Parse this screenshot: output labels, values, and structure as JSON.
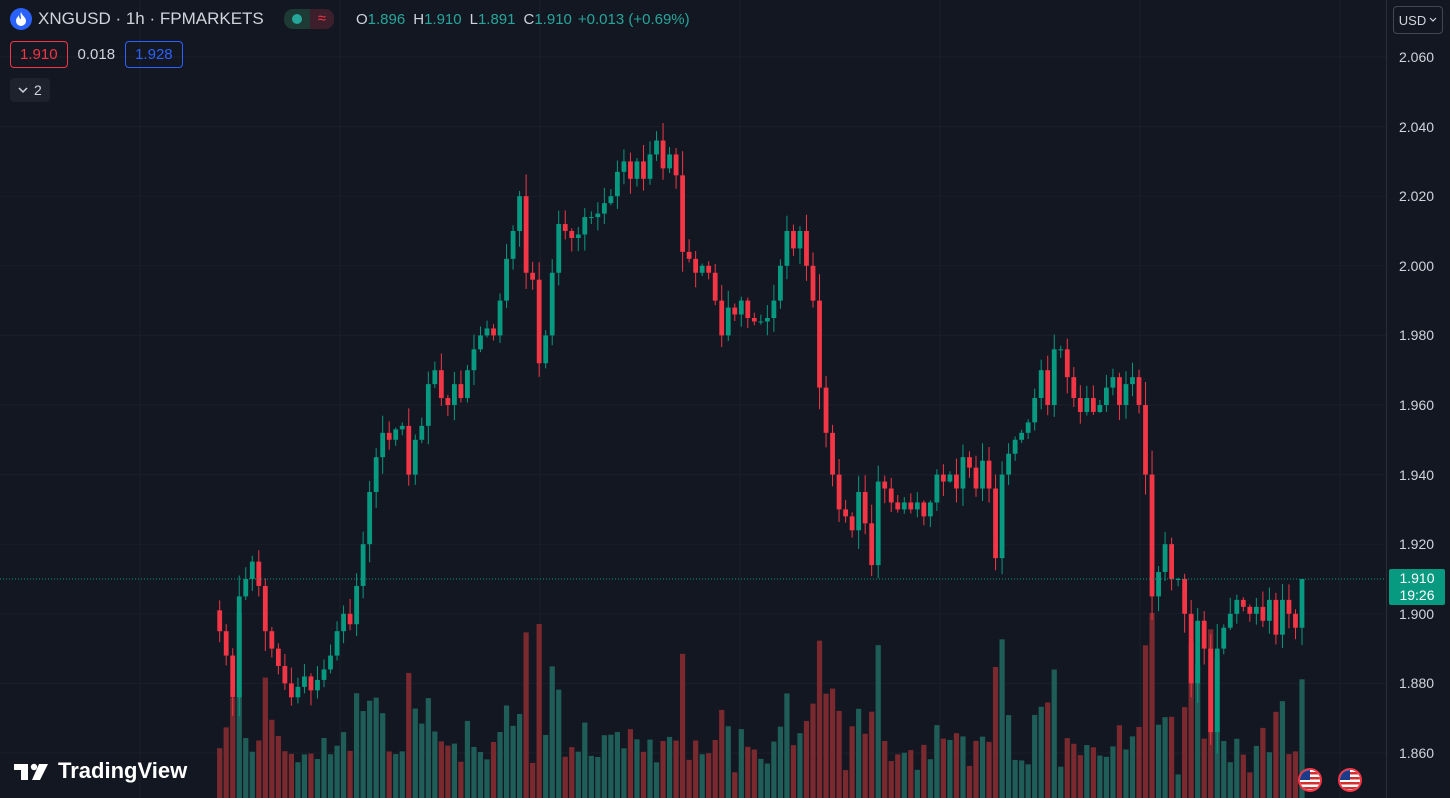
{
  "header": {
    "title": "XNGUSD · 1h · FPMARKETS",
    "ohlc": {
      "o_label": "O",
      "o": "1.896",
      "h_label": "H",
      "h": "1.910",
      "l_label": "L",
      "l": "1.891",
      "c_label": "C",
      "c": "1.910"
    },
    "change": "+0.013 (+0.69%)",
    "status_wave": "≈"
  },
  "quote": {
    "sell": "1.910",
    "spread": "0.018",
    "buy": "1.928"
  },
  "collapse": {
    "count": "2"
  },
  "scale": {
    "currency": "USD"
  },
  "last_price": {
    "price": "1.910",
    "countdown": "19:26"
  },
  "logo": {
    "text": "TradingView"
  },
  "colors": {
    "up": "#089981",
    "down": "#f23645",
    "up_vol": "#1f5e58",
    "down_vol": "#7a2a2e",
    "background": "#131722",
    "grid": "#1b1f2b"
  },
  "chart_data": {
    "type": "candlestick",
    "symbol": "XNGUSD",
    "interval": "1h",
    "ylim": [
      1.848,
      2.068
    ],
    "y_ticks": [
      "1.860",
      "1.880",
      "1.900",
      "1.920",
      "1.940",
      "1.960",
      "1.980",
      "2.000",
      "2.020",
      "2.040",
      "2.060"
    ],
    "last_price": 1.91,
    "candles": [
      [
        1.896,
        1.91,
        1.891,
        1.91
      ]
    ],
    "closes": [
      1.895,
      1.888,
      1.876,
      1.905,
      1.91,
      1.915,
      1.908,
      1.895,
      1.89,
      1.885,
      1.88,
      1.876,
      1.879,
      1.882,
      1.878,
      1.881,
      1.884,
      1.888,
      1.895,
      1.9,
      1.897,
      1.908,
      1.92,
      1.935,
      1.945,
      1.952,
      1.95,
      1.953,
      1.954,
      1.94,
      1.95,
      1.954,
      1.966,
      1.97,
      1.962,
      1.96,
      1.966,
      1.962,
      1.97,
      1.976,
      1.98,
      1.982,
      1.98,
      1.99,
      2.002,
      2.01,
      2.02,
      1.998,
      1.996,
      1.972,
      1.98,
      1.998,
      2.012,
      2.01,
      2.008,
      2.009,
      2.014,
      2.014,
      2.015,
      2.018,
      2.02,
      2.027,
      2.03,
      2.025,
      2.03,
      2.025,
      2.032,
      2.036,
      2.028,
      2.032,
      2.026,
      2.004,
      2.002,
      1.998,
      2.0,
      1.998,
      1.99,
      1.98,
      1.988,
      1.986,
      1.99,
      1.985,
      1.984,
      1.984,
      1.985,
      1.99,
      2.0,
      2.01,
      2.005,
      2.01,
      2.0,
      1.99,
      1.965,
      1.952,
      1.94,
      1.93,
      1.928,
      1.924,
      1.935,
      1.926,
      1.914,
      1.938,
      1.936,
      1.932,
      1.93,
      1.932,
      1.93,
      1.932,
      1.928,
      1.932,
      1.94,
      1.938,
      1.94,
      1.936,
      1.945,
      1.942,
      1.936,
      1.944,
      1.936,
      1.916,
      1.94,
      1.946,
      1.95,
      1.952,
      1.955,
      1.962,
      1.97,
      1.96,
      1.976,
      1.976,
      1.968,
      1.962,
      1.958,
      1.962,
      1.958,
      1.96,
      1.965,
      1.968,
      1.96,
      1.966,
      1.968,
      1.96,
      1.94,
      1.905,
      1.912,
      1.92,
      1.91,
      1.91,
      1.9,
      1.88,
      1.898,
      1.89,
      1.866,
      1.89,
      1.896,
      1.9,
      1.904,
      1.902,
      1.9,
      1.902,
      1.898,
      1.904,
      1.894,
      1.904,
      1.9,
      1.896,
      1.91
    ]
  }
}
